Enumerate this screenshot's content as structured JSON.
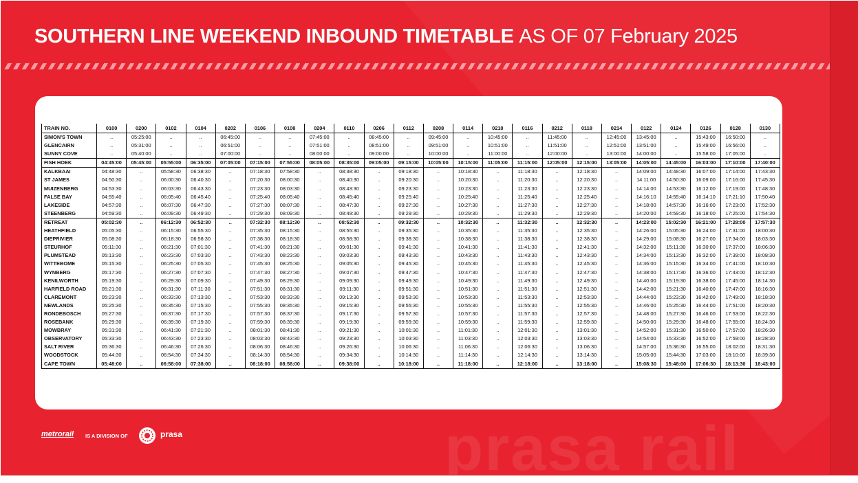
{
  "title": {
    "main": "SOUTHERN LINE WEEKEND INBOUND TIMETABLE",
    "date": "AS OF 07 February 2025"
  },
  "timetable": {
    "header_label": "TRAIN NO.",
    "trains": [
      "0100",
      "0200",
      "0102",
      "0104",
      "0202",
      "0106",
      "0108",
      "0204",
      "0110",
      "0206",
      "0112",
      "0208",
      "0114",
      "0210",
      "0116",
      "0212",
      "0118",
      "0214",
      "0122",
      "0124",
      "0126",
      "0128",
      "0130"
    ],
    "stations": [
      {
        "name": "SIMON'S TOWN",
        "times": [
          "..",
          "05:25:00",
          "..",
          "..",
          "06:45:00",
          "..",
          "..",
          "07:45:00",
          "..",
          "08:45:00",
          "..",
          "09:45:00",
          "..",
          "10:45:00",
          "..",
          "11:45:00",
          "..",
          "12:45:00",
          "13:45:00",
          "..",
          "15:43:00",
          "16:50:00",
          ".."
        ]
      },
      {
        "name": "GLENCAIRN",
        "times": [
          "..",
          "05:31:00",
          "..",
          "..",
          "06:51:00",
          "..",
          "..",
          "07:51:00",
          "..",
          "08:51:00",
          "..",
          "09:51:00",
          "..",
          "10:51:00",
          "..",
          "11:51:00",
          "..",
          "12:51:00",
          "13:51:00",
          "..",
          "15:49:00",
          "16:56:00",
          ".."
        ]
      },
      {
        "name": "SUNNY COVE",
        "times": [
          "..",
          "05:40:00",
          "..",
          "..",
          "07:00:00",
          "..",
          "..",
          "08:00:00",
          "..",
          "09:00:00",
          "..",
          "10:00:00",
          "..",
          "11:00:00",
          "..",
          "12:00:00",
          "..",
          "13:00:00",
          "14:00:00",
          "..",
          "15:58:00",
          "17:05:00",
          ".."
        ]
      },
      {
        "name": "FISH HOEK",
        "times": [
          "04:45:00",
          "05:45:00",
          "05:55:00",
          "06:35:00",
          "07:05:00",
          "07:15:00",
          "07:55:00",
          "08:05:00",
          "08:35:00",
          "09:05:00",
          "09:15:00",
          "10:05:00",
          "10:15:00",
          "11:05:00",
          "11:15:00",
          "12:05:00",
          "12:15:00",
          "13:05:00",
          "14:05:00",
          "14:45:00",
          "16:03:00",
          "17:10:00",
          "17:40:00"
        ]
      },
      {
        "name": "KALKBAAI",
        "times": [
          "04:48:30",
          "..",
          "05:58:30",
          "06:38:30",
          "..",
          "07:18:30",
          "07:58:30",
          "..",
          "08:38:30",
          "..",
          "09:18:30",
          "..",
          "10:18:30",
          "..",
          "11:18:30",
          "..",
          "12:18:30",
          "..",
          "14:09:00",
          "14:48:30",
          "16:07:00",
          "17:14:00",
          "17:43:30"
        ]
      },
      {
        "name": "ST JAMES",
        "times": [
          "04:50:30",
          "..",
          "06:00:30",
          "06:40:30",
          "..",
          "07:20:30",
          "08:00:30",
          "..",
          "08:40:30",
          "..",
          "09:20:30",
          "..",
          "10:20:30",
          "..",
          "11:20:30",
          "..",
          "12:20:30",
          "..",
          "14:11:00",
          "14:50:30",
          "16:09:00",
          "17:16:00",
          "17:45:30"
        ]
      },
      {
        "name": "MUIZENBERG",
        "times": [
          "04:53:30",
          "..",
          "06:03:30",
          "06:43:30",
          "..",
          "07:23:30",
          "08:03:30",
          "..",
          "08:43:30",
          "..",
          "09:23:30",
          "..",
          "10:23:30",
          "..",
          "11:23:30",
          "..",
          "12:23:30",
          "..",
          "14:14:00",
          "14:53:30",
          "16:12:00",
          "17:19:00",
          "17:48:30"
        ]
      },
      {
        "name": "FALSE BAY",
        "times": [
          "04:55:40",
          "..",
          "06:05:40",
          "06:45:40",
          "..",
          "07:25:40",
          "08:05:40",
          "..",
          "08:45:40",
          "..",
          "09:25:40",
          "..",
          "10:25:40",
          "..",
          "11:25:40",
          "..",
          "12:25:40",
          "..",
          "14:16:10",
          "14:55:40",
          "16:14:10",
          "17:21:10",
          "17:50:40"
        ]
      },
      {
        "name": "LAKESIDE",
        "times": [
          "04:57:30",
          "..",
          "06:07:30",
          "06:47:30",
          "..",
          "07:27:30",
          "08:07:30",
          "..",
          "08:47:30",
          "..",
          "09:27:30",
          "..",
          "10:27:30",
          "..",
          "11:27:30",
          "..",
          "12:27:30",
          "..",
          "14:18:00",
          "14:57:30",
          "16:16:00",
          "17:23:00",
          "17:52:30"
        ]
      },
      {
        "name": "STEENBERG",
        "times": [
          "04:59:30",
          "..",
          "06:09:30",
          "06:49:30",
          "..",
          "07:29:30",
          "08:09:30",
          "..",
          "08:49:30",
          "..",
          "09:29:30",
          "..",
          "10:29:30",
          "..",
          "11:29:30",
          "..",
          "12:29:30",
          "..",
          "14:20:00",
          "14:59:30",
          "16:18:00",
          "17:25:00",
          "17:54:30"
        ]
      },
      {
        "name": "RETREAT",
        "times": [
          "05:02:30",
          "..",
          "06:12:30",
          "06:52:30",
          "..",
          "07:32:30",
          "08:12:30",
          "..",
          "08:52:30",
          "..",
          "09:32:30",
          "..",
          "10:32:30",
          "..",
          "11:32:30",
          "..",
          "12:32:30",
          "..",
          "14:23:00",
          "15:02:30",
          "16:21:00",
          "17:28:00",
          "17:57:30"
        ]
      },
      {
        "name": "HEATHFIELD",
        "times": [
          "05:05:30",
          "..",
          "06:15:30",
          "06:55:30",
          "..",
          "07:35:30",
          "08:15:30",
          "..",
          "08:55:30",
          "..",
          "09:35:30",
          "..",
          "10:35:30",
          "..",
          "11:35:30",
          "..",
          "12:35:30",
          "..",
          "14:26:00",
          "15:05:30",
          "16:24:00",
          "17:31:00",
          "18:00:30"
        ]
      },
      {
        "name": "DIEPRIVIER",
        "times": [
          "05:08:30",
          "..",
          "06:18:30",
          "06:58:30",
          "..",
          "07:38:30",
          "08:18:30",
          "..",
          "08:58:30",
          "..",
          "09:38:30",
          "..",
          "10:38:30",
          "..",
          "11:38:30",
          "..",
          "12:38:30",
          "..",
          "14:29:00",
          "15:08:30",
          "16:27:00",
          "17:34:00",
          "18:03:30"
        ]
      },
      {
        "name": "STEURHOF",
        "times": [
          "05:11:30",
          "..",
          "06:21:30",
          "07:01:30",
          "..",
          "07:41:30",
          "08:21:30",
          "..",
          "09:01:30",
          "..",
          "09:41:30",
          "..",
          "10:41:30",
          "..",
          "11:41:30",
          "..",
          "12:41:30",
          "..",
          "14:32:00",
          "15:11:30",
          "16:30:00",
          "17:37:00",
          "18:06:30"
        ]
      },
      {
        "name": "PLUMSTEAD",
        "times": [
          "05:13:30",
          "..",
          "06:23:30",
          "07:03:30",
          "..",
          "07:43:30",
          "08:23:30",
          "..",
          "09:03:30",
          "..",
          "09:43:30",
          "..",
          "10:43:30",
          "..",
          "11:43:30",
          "..",
          "12:43:30",
          "..",
          "14:34:00",
          "15:13:30",
          "16:32:00",
          "17:39:00",
          "18:08:30"
        ]
      },
      {
        "name": "WITTEBOME",
        "times": [
          "05:15:30",
          "..",
          "06:25:30",
          "07:05:30",
          "..",
          "07:45:30",
          "08:25:30",
          "..",
          "09:05:30",
          "..",
          "09:45:30",
          "..",
          "10:45:30",
          "..",
          "11:45:30",
          "..",
          "12:45:30",
          "..",
          "14:36:00",
          "15:15:30",
          "16:34:00",
          "17:41:00",
          "18:10:30"
        ]
      },
      {
        "name": "WYNBERG",
        "times": [
          "05:17:30",
          "..",
          "06:27:30",
          "07:07:30",
          "..",
          "07:47:30",
          "08:27:30",
          "..",
          "09:07:30",
          "..",
          "09:47:30",
          "..",
          "10:47:30",
          "..",
          "11:47:30",
          "..",
          "12:47:30",
          "..",
          "14:38:00",
          "15:17:30",
          "16:36:00",
          "17:43:00",
          "18:12:30"
        ]
      },
      {
        "name": "KENILWORTH",
        "times": [
          "05:19:30",
          "..",
          "06:29:30",
          "07:09:30",
          "..",
          "07:49:30",
          "08:29:30",
          "..",
          "09:09:30",
          "..",
          "09:49:30",
          "..",
          "10:49:30",
          "..",
          "11:49:30",
          "..",
          "12:49:30",
          "..",
          "14:40:00",
          "15:19:30",
          "16:38:00",
          "17:45:00",
          "18:14:30"
        ]
      },
      {
        "name": "HARFIELD ROAD",
        "times": [
          "05:21:30",
          "..",
          "06:31:30",
          "07:11:30",
          "..",
          "07:51:30",
          "08:31:30",
          "..",
          "09:11:30",
          "..",
          "09:51:30",
          "..",
          "10:51:30",
          "..",
          "11:51:30",
          "..",
          "12:51:30",
          "..",
          "14:42:00",
          "15:21:30",
          "16:40:00",
          "17:47:00",
          "18:16:30"
        ]
      },
      {
        "name": "CLAREMONT",
        "times": [
          "05:23:30",
          "..",
          "06:33:30",
          "07:13:30",
          "..",
          "07:53:30",
          "08:33:30",
          "..",
          "09:13:30",
          "..",
          "09:53:30",
          "..",
          "10:53:30",
          "..",
          "11:53:30",
          "..",
          "12:53:30",
          "..",
          "14:44:00",
          "15:23:30",
          "16:42:00",
          "17:49:00",
          "18:18:30"
        ]
      },
      {
        "name": "NEWLANDS",
        "times": [
          "05:25:30",
          "..",
          "06:35:30",
          "07:15:30",
          "..",
          "07:55:30",
          "08:35:30",
          "..",
          "09:15:30",
          "..",
          "09:55:30",
          "..",
          "10:55:30",
          "..",
          "11:55:30",
          "..",
          "12:55:30",
          "..",
          "14:46:00",
          "15:25:30",
          "16:44:00",
          "17:51:00",
          "18:20:30"
        ]
      },
      {
        "name": "RONDEBOSCH",
        "times": [
          "05:27:30",
          "..",
          "06:37:30",
          "07:17:30",
          "..",
          "07:57:30",
          "08:37:30",
          "..",
          "09:17:30",
          "..",
          "09:57:30",
          "..",
          "10:57:30",
          "..",
          "11:57:30",
          "..",
          "12:57:30",
          "..",
          "14:48:00",
          "15:27:30",
          "16:46:00",
          "17:53:00",
          "18:22:30"
        ]
      },
      {
        "name": "ROSEBANK",
        "times": [
          "05:29:30",
          "..",
          "06:39:30",
          "07:19:30",
          "..",
          "07:59:30",
          "08:39:30",
          "..",
          "09:19:30",
          "..",
          "09:59:30",
          "..",
          "10:59:30",
          "..",
          "11:59:30",
          "..",
          "12:59:30",
          "..",
          "14:50:00",
          "15:29:30",
          "16:48:00",
          "17:55:00",
          "18:24:30"
        ]
      },
      {
        "name": "MOWBRAY",
        "times": [
          "05:31:30",
          "..",
          "06:41:30",
          "07:21:30",
          "..",
          "08:01:30",
          "08:41:30",
          "..",
          "09:21:30",
          "..",
          "10:01:30",
          "..",
          "11:01:30",
          "..",
          "12:01:30",
          "..",
          "13:01:30",
          "..",
          "14:52:00",
          "15:31:30",
          "16:50:00",
          "17:57:00",
          "18:26:30"
        ]
      },
      {
        "name": "OBSERVATORY",
        "times": [
          "05:33:30",
          "..",
          "06:43:30",
          "07:23:30",
          "..",
          "08:03:30",
          "08:43:30",
          "..",
          "09:23:30",
          "..",
          "10:03:30",
          "..",
          "11:03:30",
          "..",
          "12:03:30",
          "..",
          "13:03:30",
          "..",
          "14:54:00",
          "15:33:30",
          "16:52:00",
          "17:59:00",
          "18:28:30"
        ]
      },
      {
        "name": "SALT RIVER",
        "times": [
          "05:36:30",
          "..",
          "06:46:30",
          "07:26:30",
          "..",
          "08:06:30",
          "08:46:30",
          "..",
          "09:26:30",
          "..",
          "10:06:30",
          "..",
          "11:06:30",
          "..",
          "12:06:30",
          "..",
          "13:06:30",
          "..",
          "14:57:00",
          "15:36:30",
          "16:55:00",
          "18:02:00",
          "18:31:30"
        ]
      },
      {
        "name": "WOODSTOCK",
        "times": [
          "05:44:30",
          "..",
          "06:54:30",
          "07:34:30",
          "..",
          "08:14:30",
          "08:54:30",
          "..",
          "09:34:30",
          "..",
          "10:14:30",
          "..",
          "11:14:30",
          "..",
          "12:14:30",
          "..",
          "13:14:30",
          "..",
          "15:05:00",
          "15:44:30",
          "17:03:00",
          "18:10:00",
          "18:39:30"
        ]
      },
      {
        "name": "CAPE TOWN",
        "times": [
          "05:48:00",
          "..",
          "06:58:00",
          "07:38:00",
          "..",
          "08:18:00",
          "08:58:00",
          "..",
          "09:38:00",
          "..",
          "10:18:00",
          "..",
          "11:18:00",
          "..",
          "12:18:00",
          "..",
          "13:18:00",
          "..",
          "15:08:30",
          "15:48:00",
          "17:06:30",
          "18:13:30",
          "18:43:00"
        ]
      }
    ],
    "bold_rows": [
      "FISH HOEK",
      "RETREAT",
      "CAPE TOWN"
    ],
    "separator_after": [
      "SUNNY COVE",
      "FISH HOEK",
      "STEENBERG"
    ]
  },
  "footer": {
    "metrorail_logo": "metrorail",
    "division_text": "IS A DIVISION OF",
    "prasa_logo": "prasa"
  },
  "watermark": "prasa rail",
  "colors": {
    "brand_red": "#e8232f",
    "panel_white": "#ffffff",
    "text_dark": "#111111"
  },
  "icons": {
    "prasa_mark": "prasa-circle-logo-icon"
  }
}
